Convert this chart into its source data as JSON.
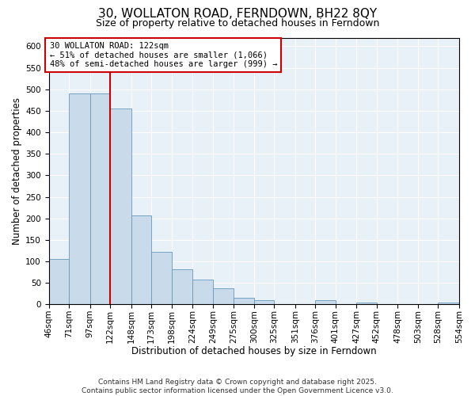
{
  "title": "30, WOLLATON ROAD, FERNDOWN, BH22 8QY",
  "subtitle": "Size of property relative to detached houses in Ferndown",
  "xlabel": "Distribution of detached houses by size in Ferndown",
  "ylabel": "Number of detached properties",
  "bin_edges": [
    46,
    71,
    97,
    122,
    148,
    173,
    198,
    224,
    249,
    275,
    300,
    325,
    351,
    376,
    401,
    427,
    452,
    478,
    503,
    528,
    554
  ],
  "bin_labels": [
    "46sqm",
    "71sqm",
    "97sqm",
    "122sqm",
    "148sqm",
    "173sqm",
    "198sqm",
    "224sqm",
    "249sqm",
    "275sqm",
    "300sqm",
    "325sqm",
    "351sqm",
    "376sqm",
    "401sqm",
    "427sqm",
    "452sqm",
    "478sqm",
    "503sqm",
    "528sqm",
    "554sqm"
  ],
  "counts": [
    105,
    490,
    490,
    455,
    207,
    122,
    82,
    58,
    37,
    15,
    10,
    0,
    0,
    10,
    0,
    5,
    0,
    0,
    0,
    5
  ],
  "bar_color": "#c9daea",
  "bar_edge_color": "#6699bb",
  "property_value": 122,
  "vline_color": "#cc0000",
  "annotation_line1": "30 WOLLATON ROAD: 122sqm",
  "annotation_line2": "← 51% of detached houses are smaller (1,066)",
  "annotation_line3": "48% of semi-detached houses are larger (999) →",
  "annotation_box_color": "#ffffff",
  "annotation_box_edge": "#cc0000",
  "ylim": [
    0,
    620
  ],
  "yticks": [
    0,
    50,
    100,
    150,
    200,
    250,
    300,
    350,
    400,
    450,
    500,
    550,
    600
  ],
  "footer_text": "Contains HM Land Registry data © Crown copyright and database right 2025.\nContains public sector information licensed under the Open Government Licence v3.0.",
  "background_color": "#ffffff",
  "plot_bg_color": "#e8f0f8",
  "title_fontsize": 11,
  "subtitle_fontsize": 9,
  "axis_label_fontsize": 8.5,
  "tick_fontsize": 7.5,
  "footer_fontsize": 6.5
}
